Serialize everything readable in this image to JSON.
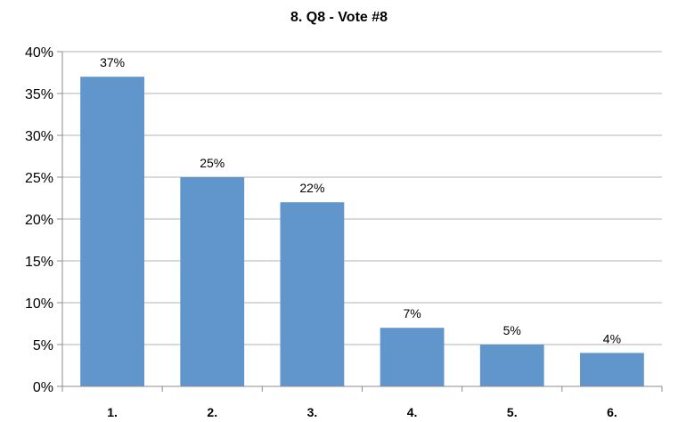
{
  "chart_data": {
    "type": "bar",
    "title": "8. Q8 - Vote #8",
    "categories": [
      "1.",
      "2.",
      "3.",
      "4.",
      "5.",
      "6."
    ],
    "values": [
      37,
      25,
      22,
      7,
      5,
      4
    ],
    "data_labels": [
      "37%",
      "25%",
      "22%",
      "7%",
      "5%",
      "4%"
    ],
    "yticks": [
      0,
      5,
      10,
      15,
      20,
      25,
      30,
      35,
      40
    ],
    "ytick_labels": [
      "0%",
      "5%",
      "10%",
      "15%",
      "20%",
      "25%",
      "30%",
      "35%",
      "40%"
    ],
    "ylim": [
      0,
      40
    ],
    "grid": true,
    "bar_color": "#6096CC",
    "grid_color": "#B3B3B3",
    "axis_color": "#8C8C8C"
  }
}
